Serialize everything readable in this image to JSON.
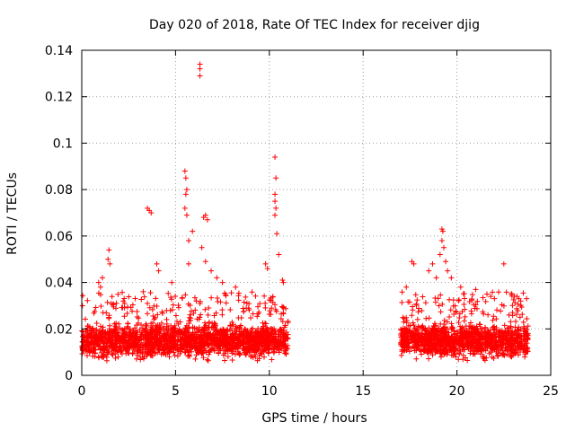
{
  "chart_data": {
    "type": "scatter",
    "title": "Day 020 of 2018, Rate Of TEC Index for receiver djig",
    "xlabel": "GPS time / hours",
    "ylabel": "ROTI / TECUs",
    "xlim": [
      0,
      25
    ],
    "ylim": [
      0,
      0.14
    ],
    "xticks": [
      0,
      5,
      10,
      15,
      20,
      25
    ],
    "xtick_labels": [
      "0",
      "5",
      "10",
      "15",
      "20",
      "25"
    ],
    "yticks": [
      0,
      0.02,
      0.04,
      0.06,
      0.08,
      0.1,
      0.12,
      0.14
    ],
    "ytick_labels": [
      "0",
      "0.02",
      "0.04",
      "0.06",
      "0.08",
      "0.1",
      "0.12",
      "0.14"
    ],
    "grid": true,
    "marker": "+",
    "color": "#ff0000",
    "series": [
      {
        "name": "ROTI",
        "segments": [
          {
            "start": 0.0,
            "end": 11.0
          },
          {
            "start": 17.0,
            "end": 23.8
          }
        ],
        "baseline_range": [
          0.005,
          0.025
        ],
        "points": [
          {
            "x": 0.9,
            "y": 0.04
          },
          {
            "x": 1.0,
            "y": 0.038
          },
          {
            "x": 1.1,
            "y": 0.042
          },
          {
            "x": 1.4,
            "y": 0.05
          },
          {
            "x": 1.45,
            "y": 0.054
          },
          {
            "x": 1.5,
            "y": 0.048
          },
          {
            "x": 3.5,
            "y": 0.072
          },
          {
            "x": 3.6,
            "y": 0.071
          },
          {
            "x": 3.7,
            "y": 0.07
          },
          {
            "x": 4.0,
            "y": 0.048
          },
          {
            "x": 4.1,
            "y": 0.045
          },
          {
            "x": 4.8,
            "y": 0.04
          },
          {
            "x": 5.5,
            "y": 0.088
          },
          {
            "x": 5.55,
            "y": 0.085
          },
          {
            "x": 5.6,
            "y": 0.08
          },
          {
            "x": 5.55,
            "y": 0.078
          },
          {
            "x": 5.5,
            "y": 0.072
          },
          {
            "x": 5.6,
            "y": 0.069
          },
          {
            "x": 5.7,
            "y": 0.058
          },
          {
            "x": 5.9,
            "y": 0.062
          },
          {
            "x": 5.7,
            "y": 0.048
          },
          {
            "x": 6.3,
            "y": 0.134
          },
          {
            "x": 6.3,
            "y": 0.132
          },
          {
            "x": 6.3,
            "y": 0.129
          },
          {
            "x": 6.5,
            "y": 0.068
          },
          {
            "x": 6.6,
            "y": 0.069
          },
          {
            "x": 6.7,
            "y": 0.067
          },
          {
            "x": 6.4,
            "y": 0.055
          },
          {
            "x": 6.6,
            "y": 0.049
          },
          {
            "x": 6.9,
            "y": 0.045
          },
          {
            "x": 7.2,
            "y": 0.042
          },
          {
            "x": 7.5,
            "y": 0.04
          },
          {
            "x": 8.2,
            "y": 0.038
          },
          {
            "x": 9.8,
            "y": 0.048
          },
          {
            "x": 9.9,
            "y": 0.046
          },
          {
            "x": 10.3,
            "y": 0.094
          },
          {
            "x": 10.35,
            "y": 0.085
          },
          {
            "x": 10.3,
            "y": 0.078
          },
          {
            "x": 10.3,
            "y": 0.075
          },
          {
            "x": 10.35,
            "y": 0.072
          },
          {
            "x": 10.3,
            "y": 0.069
          },
          {
            "x": 10.4,
            "y": 0.061
          },
          {
            "x": 10.5,
            "y": 0.052
          },
          {
            "x": 10.7,
            "y": 0.041
          },
          {
            "x": 10.75,
            "y": 0.04
          },
          {
            "x": 17.3,
            "y": 0.038
          },
          {
            "x": 17.6,
            "y": 0.049
          },
          {
            "x": 17.7,
            "y": 0.048
          },
          {
            "x": 18.5,
            "y": 0.045
          },
          {
            "x": 18.7,
            "y": 0.048
          },
          {
            "x": 18.9,
            "y": 0.042
          },
          {
            "x": 19.2,
            "y": 0.063
          },
          {
            "x": 19.25,
            "y": 0.062
          },
          {
            "x": 19.2,
            "y": 0.058
          },
          {
            "x": 19.3,
            "y": 0.055
          },
          {
            "x": 19.1,
            "y": 0.052
          },
          {
            "x": 19.4,
            "y": 0.049
          },
          {
            "x": 19.5,
            "y": 0.045
          },
          {
            "x": 19.7,
            "y": 0.042
          },
          {
            "x": 20.2,
            "y": 0.038
          },
          {
            "x": 21.0,
            "y": 0.037
          },
          {
            "x": 21.6,
            "y": 0.035
          },
          {
            "x": 21.8,
            "y": 0.034
          },
          {
            "x": 22.0,
            "y": 0.033
          },
          {
            "x": 22.5,
            "y": 0.048
          },
          {
            "x": 23.2,
            "y": 0.034
          },
          {
            "x": 23.3,
            "y": 0.033
          },
          {
            "x": 23.4,
            "y": 0.032
          }
        ]
      }
    ]
  }
}
